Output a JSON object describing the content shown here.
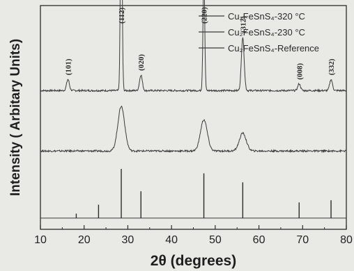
{
  "chart_data": {
    "type": "line",
    "xlabel": "2θ (degrees)",
    "ylabel": "Intensity ( Arbitary Units)",
    "xlim": [
      10,
      80
    ],
    "x_ticks": [
      "10",
      "20",
      "30",
      "40",
      "50",
      "60",
      "70",
      "80"
    ],
    "grid": false,
    "legend_position": "top-right",
    "series": [
      {
        "name": "Cu₂FeSnS₄-320 °C",
        "baseline": 0.62,
        "peaks": [
          {
            "x": 16.3,
            "h": 0.05
          },
          {
            "x": 28.5,
            "h": 0.95
          },
          {
            "x": 33.0,
            "h": 0.07
          },
          {
            "x": 47.4,
            "h": 0.53
          },
          {
            "x": 56.3,
            "h": 0.24
          },
          {
            "x": 69.2,
            "h": 0.03
          },
          {
            "x": 76.5,
            "h": 0.05
          }
        ]
      },
      {
        "name": "Cu₂FeSnS₄-230 °C",
        "baseline": 0.35,
        "peaks": [
          {
            "x": 28.5,
            "h": 0.2
          },
          {
            "x": 47.4,
            "h": 0.14
          },
          {
            "x": 56.3,
            "h": 0.08
          }
        ]
      },
      {
        "name": "Cu₂FeSnS₄-Reference",
        "baseline": 0.05,
        "sticks": [
          {
            "x": 18.2,
            "h": 0.02
          },
          {
            "x": 23.3,
            "h": 0.06
          },
          {
            "x": 28.5,
            "h": 0.22
          },
          {
            "x": 33.0,
            "h": 0.12
          },
          {
            "x": 47.4,
            "h": 0.2
          },
          {
            "x": 56.3,
            "h": 0.16
          },
          {
            "x": 69.2,
            "h": 0.07
          },
          {
            "x": 76.5,
            "h": 0.08
          }
        ]
      }
    ],
    "annotations": [
      {
        "text": "(101)",
        "x": 16.3
      },
      {
        "text": "(112)",
        "x": 28.5
      },
      {
        "text": "(020)",
        "x": 33.0
      },
      {
        "text": "(220)",
        "x": 47.4
      },
      {
        "text": "(312)",
        "x": 56.3
      },
      {
        "text": "(008)",
        "x": 69.2
      },
      {
        "text": "(332)",
        "x": 76.5
      }
    ]
  }
}
